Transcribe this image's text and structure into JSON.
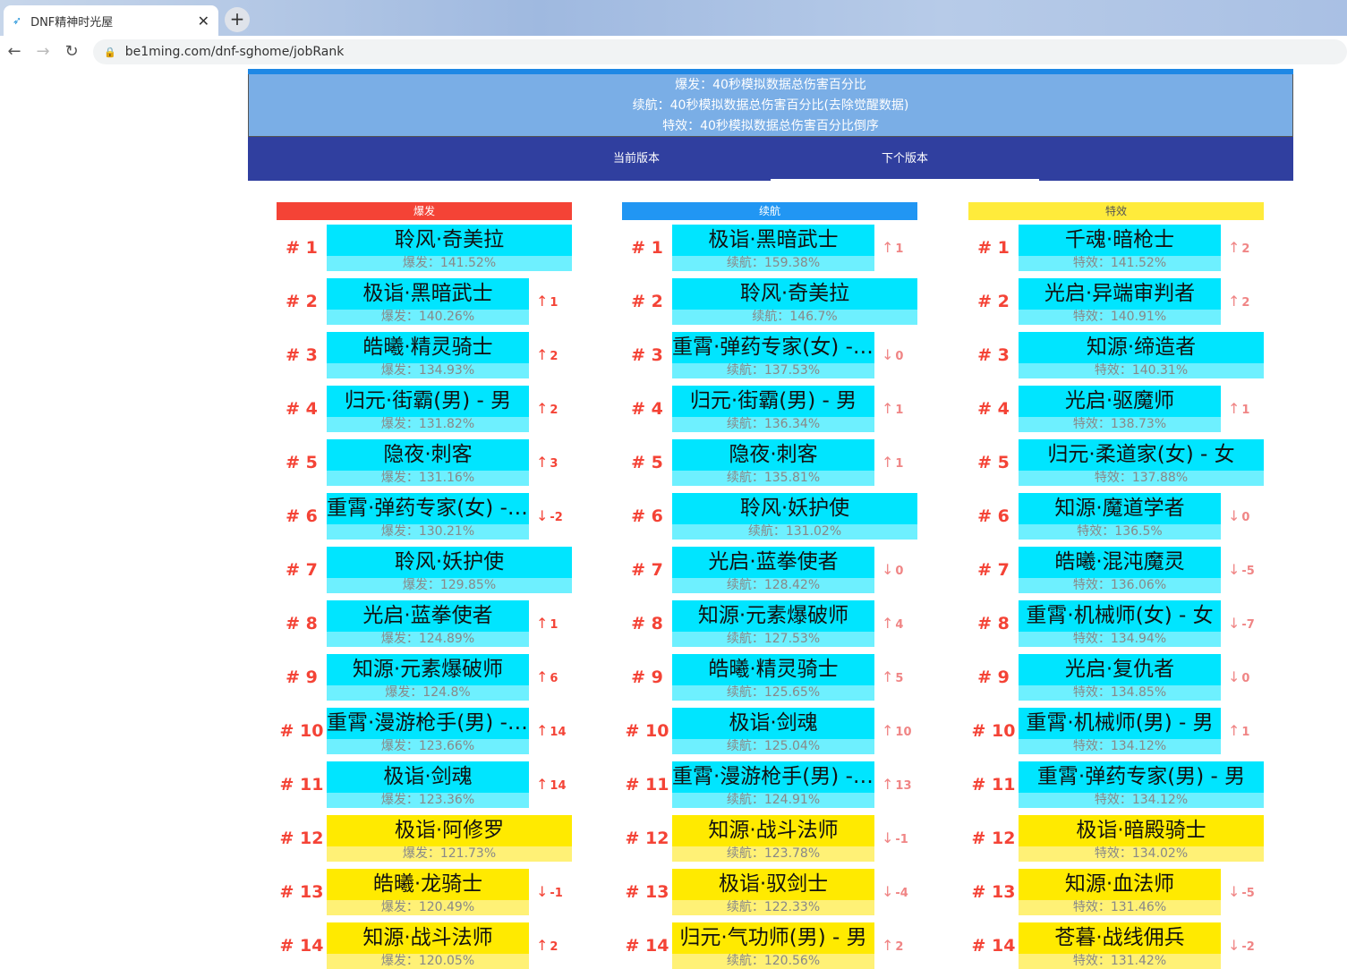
{
  "browser": {
    "tab_title": "DNF精神时光屋",
    "url": "be1ming.com/dnf-sghome/jobRank",
    "favicon": "bird-icon"
  },
  "header": {
    "lines": [
      "爆发：40秒模拟数据总伤害百分比",
      "续航：40秒模拟数据总伤害百分比(去除觉醒数据)",
      "特效：40秒模拟数据总伤害百分比倒序"
    ],
    "tabs": [
      {
        "label": "当前版本",
        "active": false
      },
      {
        "label": "下个版本",
        "active": true
      }
    ]
  },
  "colors": {
    "burst": "#f44336",
    "sustain": "#2196f3",
    "effect": "#ffeb3b",
    "bar": "#00e5ff",
    "bar_light": "#6ef0ff",
    "bar_low": "#ffea00",
    "bar_low_light": "#fff176",
    "rank": "#f44336"
  },
  "columns": [
    {
      "title": "爆发",
      "color": "#f44336",
      "arrow_color": "#f44336",
      "items": [
        {
          "rank": "# 1",
          "name": "聆风·奇美拉",
          "value": "爆发：141.52%",
          "change": ""
        },
        {
          "rank": "# 2",
          "name": "极诣·黑暗武士",
          "value": "爆发：140.26%",
          "change": "1",
          "dir": "up"
        },
        {
          "rank": "# 3",
          "name": "皓曦·精灵骑士",
          "value": "爆发：134.93%",
          "change": "2",
          "dir": "up"
        },
        {
          "rank": "# 4",
          "name": "归元·街霸(男) - 男",
          "value": "爆发：131.82%",
          "change": "2",
          "dir": "up"
        },
        {
          "rank": "# 5",
          "name": "隐夜·刺客",
          "value": "爆发：131.16%",
          "change": "3",
          "dir": "up"
        },
        {
          "rank": "# 6",
          "name": "重霄·弹药专家(女) - 女",
          "value": "爆发：130.21%",
          "change": "-2",
          "dir": "down"
        },
        {
          "rank": "# 7",
          "name": "聆风·妖护使",
          "value": "爆发：129.85%",
          "change": ""
        },
        {
          "rank": "# 8",
          "name": "光启·蓝拳使者",
          "value": "爆发：124.89%",
          "change": "1",
          "dir": "up"
        },
        {
          "rank": "# 9",
          "name": "知源·元素爆破师",
          "value": "爆发：124.8%",
          "change": "6",
          "dir": "up"
        },
        {
          "rank": "# 10",
          "name": "重霄·漫游枪手(男) - 男",
          "value": "爆发：123.66%",
          "change": "14",
          "dir": "up"
        },
        {
          "rank": "# 11",
          "name": "极诣·剑魂",
          "value": "爆发：123.36%",
          "change": "14",
          "dir": "up"
        },
        {
          "rank": "# 12",
          "name": "极诣·阿修罗",
          "value": "爆发：121.73%",
          "change": ""
        },
        {
          "rank": "# 13",
          "name": "皓曦·龙骑士",
          "value": "爆发：120.49%",
          "change": "-1",
          "dir": "down"
        },
        {
          "rank": "# 14",
          "name": "知源·战斗法师",
          "value": "爆发：120.05%",
          "change": "2",
          "dir": "up"
        }
      ]
    },
    {
      "title": "续航",
      "color": "#2196f3",
      "arrow_color": "#f08585",
      "items": [
        {
          "rank": "# 1",
          "name": "极诣·黑暗武士",
          "value": "续航：159.38%",
          "change": "1",
          "dir": "up"
        },
        {
          "rank": "# 2",
          "name": "聆风·奇美拉",
          "value": "续航：146.7%",
          "change": ""
        },
        {
          "rank": "# 3",
          "name": "重霄·弹药专家(女) - 女",
          "value": "续航：137.53%",
          "change": "0",
          "dir": "down"
        },
        {
          "rank": "# 4",
          "name": "归元·街霸(男) - 男",
          "value": "续航：136.34%",
          "change": "1",
          "dir": "up"
        },
        {
          "rank": "# 5",
          "name": "隐夜·刺客",
          "value": "续航：135.81%",
          "change": "1",
          "dir": "up"
        },
        {
          "rank": "# 6",
          "name": "聆风·妖护使",
          "value": "续航：131.02%",
          "change": ""
        },
        {
          "rank": "# 7",
          "name": "光启·蓝拳使者",
          "value": "续航：128.42%",
          "change": "0",
          "dir": "down"
        },
        {
          "rank": "# 8",
          "name": "知源·元素爆破师",
          "value": "续航：127.53%",
          "change": "4",
          "dir": "up"
        },
        {
          "rank": "# 9",
          "name": "皓曦·精灵骑士",
          "value": "续航：125.65%",
          "change": "5",
          "dir": "up"
        },
        {
          "rank": "# 10",
          "name": "极诣·剑魂",
          "value": "续航：125.04%",
          "change": "10",
          "dir": "up"
        },
        {
          "rank": "# 11",
          "name": "重霄·漫游枪手(男) - 男",
          "value": "续航：124.91%",
          "change": "13",
          "dir": "up"
        },
        {
          "rank": "# 12",
          "name": "知源·战斗法师",
          "value": "续航：123.78%",
          "change": "-1",
          "dir": "down"
        },
        {
          "rank": "# 13",
          "name": "极诣·驭剑士",
          "value": "续航：122.33%",
          "change": "-4",
          "dir": "down"
        },
        {
          "rank": "# 14",
          "name": "归元·气功师(男) - 男",
          "value": "续航：120.56%",
          "change": "2",
          "dir": "up"
        }
      ]
    },
    {
      "title": "特效",
      "color": "#ffeb3b",
      "arrow_color": "#f08585",
      "items": [
        {
          "rank": "# 1",
          "name": "千魂·暗枪士",
          "value": "特效：141.52%",
          "change": "2",
          "dir": "up"
        },
        {
          "rank": "# 2",
          "name": "光启·异端审判者",
          "value": "特效：140.91%",
          "change": "2",
          "dir": "up"
        },
        {
          "rank": "# 3",
          "name": "知源·缔造者",
          "value": "特效：140.31%",
          "change": ""
        },
        {
          "rank": "# 4",
          "name": "光启·驱魔师",
          "value": "特效：138.73%",
          "change": "1",
          "dir": "up"
        },
        {
          "rank": "# 5",
          "name": "归元·柔道家(女) - 女",
          "value": "特效：137.88%",
          "change": ""
        },
        {
          "rank": "# 6",
          "name": "知源·魔道学者",
          "value": "特效：136.5%",
          "change": "0",
          "dir": "down"
        },
        {
          "rank": "# 7",
          "name": "皓曦·混沌魔灵",
          "value": "特效：136.06%",
          "change": "-5",
          "dir": "down"
        },
        {
          "rank": "# 8",
          "name": "重霄·机械师(女) - 女",
          "value": "特效：134.94%",
          "change": "-7",
          "dir": "down"
        },
        {
          "rank": "# 9",
          "name": "光启·复仇者",
          "value": "特效：134.85%",
          "change": "0",
          "dir": "down"
        },
        {
          "rank": "# 10",
          "name": "重霄·机械师(男) - 男",
          "value": "特效：134.12%",
          "change": "1",
          "dir": "up"
        },
        {
          "rank": "# 11",
          "name": "重霄·弹药专家(男) - 男",
          "value": "特效：134.12%",
          "change": ""
        },
        {
          "rank": "# 12",
          "name": "极诣·暗殿骑士",
          "value": "特效：134.02%",
          "change": ""
        },
        {
          "rank": "# 13",
          "name": "知源·血法师",
          "value": "特效：131.46%",
          "change": "-5",
          "dir": "down"
        },
        {
          "rank": "# 14",
          "name": "苍暮·战线佣兵",
          "value": "特效：131.42%",
          "change": "-2",
          "dir": "down"
        }
      ]
    }
  ]
}
